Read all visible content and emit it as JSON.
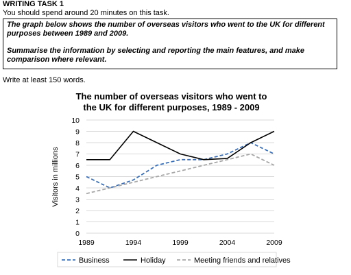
{
  "task": {
    "heading": "WRITING TASK 1",
    "time_note": "You should spend around 20 minutes on this task.",
    "prompt_line1": "The graph below shows the number of overseas visitors who went to the UK for different purposes between 1989 and 2009.",
    "prompt_line2": "Summarise the information by selecting and reporting the main features, and make comparison where relevant.",
    "word_limit": "Write at least 150 words."
  },
  "chart_data": {
    "type": "line",
    "title_line1": "The number of overseas visitors who went to",
    "title_line2": "the UK for different purposes, 1989 - 2009",
    "xlabel": "",
    "ylabel": "Visitors in millions",
    "x_tick_labels": [
      "1989",
      "1994",
      "1999",
      "2004",
      "2009"
    ],
    "x_range": [
      1989,
      2009
    ],
    "y_tick_labels": [
      "0",
      "1",
      "2",
      "3",
      "4",
      "5",
      "6",
      "7",
      "8",
      "9",
      "10"
    ],
    "ylim": [
      0,
      10
    ],
    "legend_position": "bottom",
    "series": [
      {
        "name": "Business",
        "color": "#3a6fb7",
        "style": "dashed",
        "x": [
          1989,
          1991.5,
          1994,
          1996.5,
          1999,
          2001.5,
          2004,
          2006.5,
          2009
        ],
        "values": [
          5,
          4,
          4.7,
          6,
          6.5,
          6.5,
          7,
          8,
          7
        ]
      },
      {
        "name": "Holiday",
        "color": "#000000",
        "style": "solid",
        "x": [
          1989,
          1991.5,
          1994,
          1996.5,
          1999,
          2001.5,
          2004,
          2006.5,
          2009
        ],
        "values": [
          6.5,
          6.5,
          9,
          8,
          7,
          6.5,
          6.6,
          8,
          9
        ]
      },
      {
        "name": "Meeting friends and relatives",
        "color": "#a6a6a6",
        "style": "dashed",
        "x": [
          1989,
          1991.5,
          1994,
          1996.5,
          1999,
          2001.5,
          2004,
          2006.5,
          2009
        ],
        "values": [
          3.5,
          4,
          4.5,
          5,
          5.5,
          6,
          6.5,
          7,
          6
        ]
      }
    ]
  }
}
